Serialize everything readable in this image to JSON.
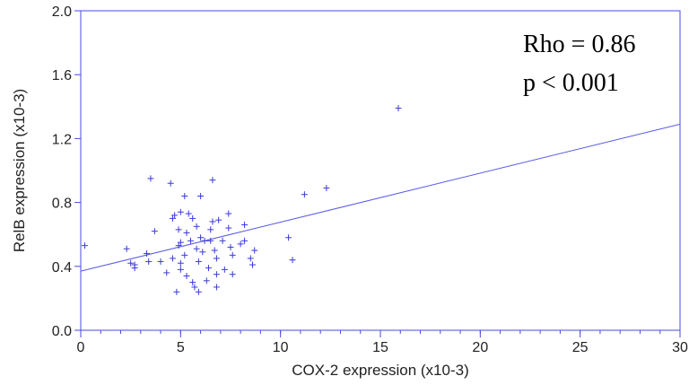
{
  "chart_data": {
    "type": "scatter",
    "title": "",
    "xlabel": "COX-2 expression (x10-3)",
    "ylabel": "RelB expression (x10-3)",
    "xlim": [
      0,
      30
    ],
    "ylim": [
      0,
      2.0
    ],
    "x_ticks": [
      "0",
      "5",
      "10",
      "15",
      "20",
      "25",
      "30"
    ],
    "y_ticks": [
      "0.0",
      "0.4",
      "0.8",
      "1.2",
      "1.6",
      "2.0"
    ],
    "x_tick_values": [
      0,
      5,
      10,
      15,
      20,
      25,
      30
    ],
    "y_tick_values": [
      0.0,
      0.4,
      0.8,
      1.2,
      1.6,
      2.0
    ],
    "x_minor_step": 1,
    "grid": false,
    "annotations": [
      "Rho = 0.86",
      "p < 0.001"
    ],
    "regression_line": {
      "x": [
        0,
        30
      ],
      "y": [
        0.37,
        1.29
      ]
    },
    "series": [
      {
        "marker": "+",
        "color": "#3a3ad8",
        "points": [
          [
            0.2,
            0.53
          ],
          [
            2.3,
            0.51
          ],
          [
            2.5,
            0.42
          ],
          [
            2.7,
            0.39
          ],
          [
            2.7,
            0.41
          ],
          [
            3.3,
            0.48
          ],
          [
            3.5,
            0.95
          ],
          [
            3.7,
            0.62
          ],
          [
            3.4,
            0.43
          ],
          [
            4.0,
            0.43
          ],
          [
            4.3,
            0.36
          ],
          [
            4.5,
            0.92
          ],
          [
            4.6,
            0.7
          ],
          [
            4.7,
            0.72
          ],
          [
            4.6,
            0.45
          ],
          [
            4.8,
            0.24
          ],
          [
            4.9,
            0.63
          ],
          [
            4.9,
            0.53
          ],
          [
            5.0,
            0.42
          ],
          [
            5.0,
            0.55
          ],
          [
            5.0,
            0.74
          ],
          [
            5.0,
            0.38
          ],
          [
            5.2,
            0.84
          ],
          [
            5.3,
            0.61
          ],
          [
            5.2,
            0.47
          ],
          [
            5.3,
            0.34
          ],
          [
            5.4,
            0.73
          ],
          [
            5.5,
            0.56
          ],
          [
            5.6,
            0.7
          ],
          [
            5.6,
            0.3
          ],
          [
            5.7,
            0.27
          ],
          [
            5.8,
            0.65
          ],
          [
            5.8,
            0.51
          ],
          [
            5.9,
            0.43
          ],
          [
            5.9,
            0.24
          ],
          [
            6.0,
            0.84
          ],
          [
            6.0,
            0.58
          ],
          [
            6.1,
            0.49
          ],
          [
            6.2,
            0.56
          ],
          [
            6.3,
            0.31
          ],
          [
            6.4,
            0.39
          ],
          [
            6.5,
            0.63
          ],
          [
            6.5,
            0.56
          ],
          [
            6.6,
            0.94
          ],
          [
            6.6,
            0.68
          ],
          [
            6.7,
            0.5
          ],
          [
            6.8,
            0.45
          ],
          [
            6.8,
            0.35
          ],
          [
            6.8,
            0.27
          ],
          [
            6.9,
            0.69
          ],
          [
            7.1,
            0.56
          ],
          [
            7.2,
            0.38
          ],
          [
            7.4,
            0.73
          ],
          [
            7.4,
            0.64
          ],
          [
            7.5,
            0.52
          ],
          [
            7.6,
            0.35
          ],
          [
            7.6,
            0.47
          ],
          [
            8.0,
            0.54
          ],
          [
            8.2,
            0.56
          ],
          [
            8.2,
            0.66
          ],
          [
            8.5,
            0.45
          ],
          [
            8.6,
            0.41
          ],
          [
            8.7,
            0.5
          ],
          [
            10.4,
            0.58
          ],
          [
            10.6,
            0.44
          ],
          [
            11.2,
            0.85
          ],
          [
            12.3,
            0.89
          ],
          [
            15.9,
            1.39
          ]
        ]
      }
    ]
  }
}
